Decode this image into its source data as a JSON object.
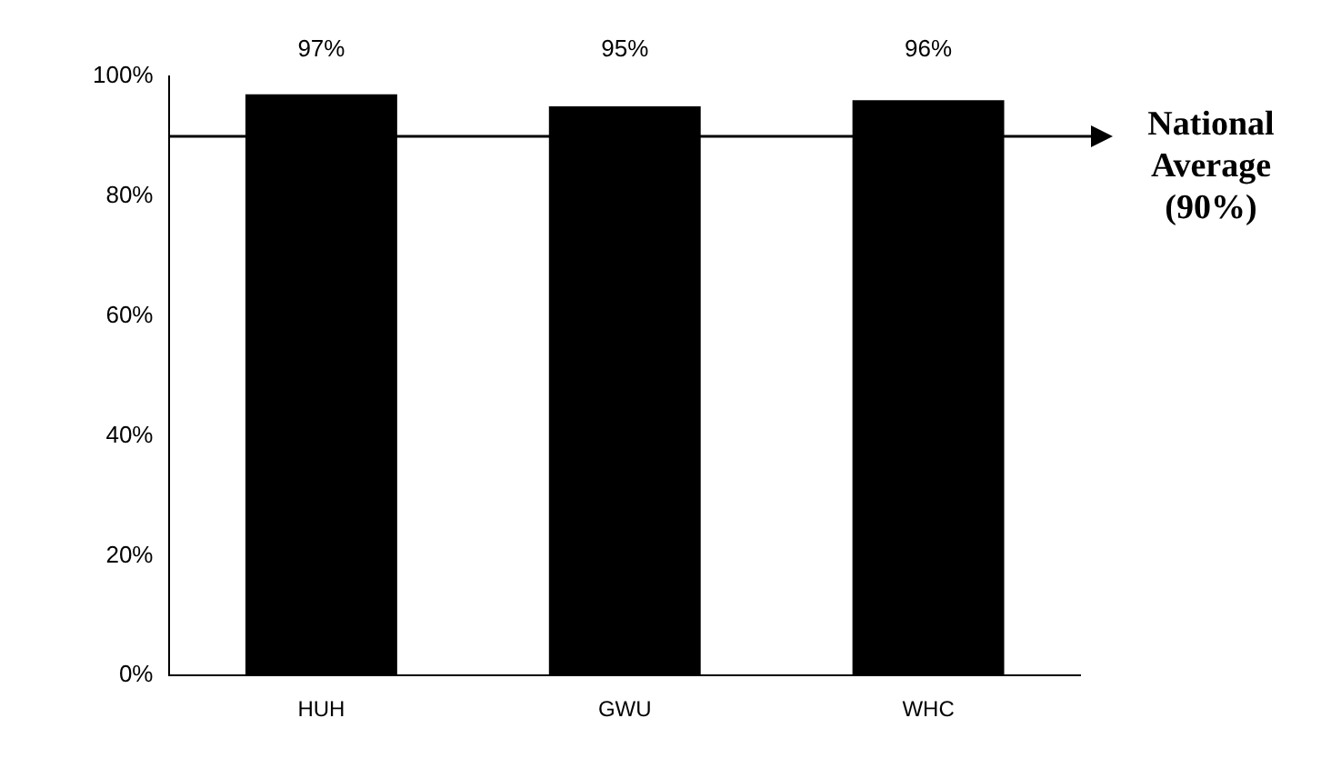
{
  "chart_data": {
    "type": "bar",
    "categories": [
      "HUH",
      "GWU",
      "WHC"
    ],
    "values": [
      97,
      95,
      96
    ],
    "value_labels": [
      "97%",
      "95%",
      "96%"
    ],
    "color": "#000000",
    "ylim": [
      0,
      100
    ],
    "yticks": [
      {
        "value": 0,
        "label": "0%"
      },
      {
        "value": 20,
        "label": "20%"
      },
      {
        "value": 40,
        "label": "40%"
      },
      {
        "value": 60,
        "label": "60%"
      },
      {
        "value": 80,
        "label": "80%"
      },
      {
        "value": 100,
        "label": "100%"
      }
    ],
    "grid": false,
    "ref_lines": [
      {
        "axis": "y",
        "value": 90,
        "label": "National Average (90%)",
        "color": "#000000"
      }
    ]
  }
}
